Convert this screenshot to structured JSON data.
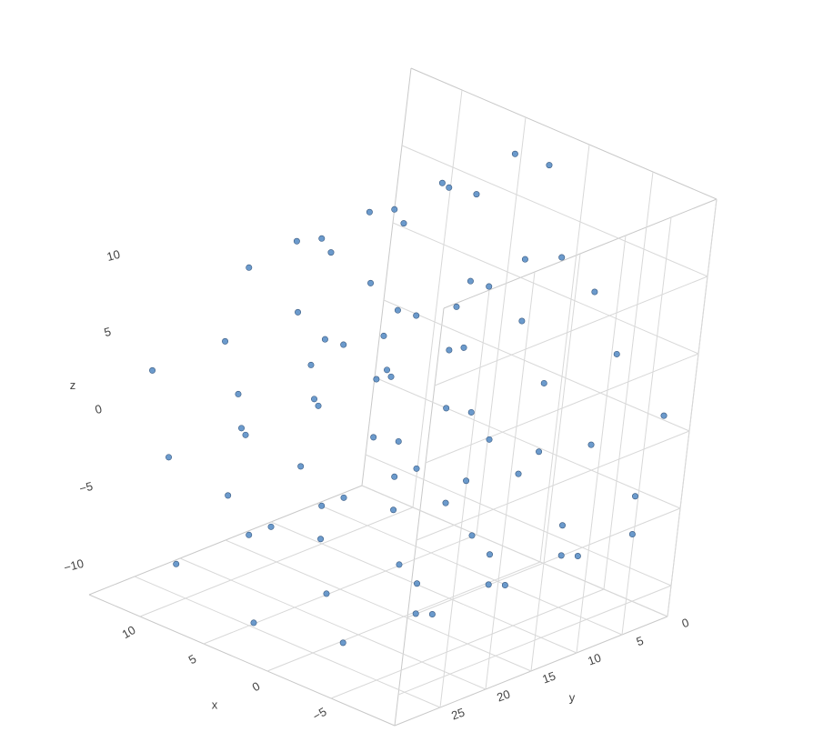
{
  "chart_data": {
    "type": "scatter3d",
    "xlabel": "x",
    "ylabel": "y",
    "zlabel": "z",
    "xlim": [
      -10,
      14
    ],
    "ylim": [
      0,
      30
    ],
    "zlim": [
      -12,
      15
    ],
    "xticks": [
      {
        "value": -5,
        "label": "−5"
      },
      0,
      5,
      10
    ],
    "yticks": [
      0,
      5,
      10,
      15,
      20,
      25
    ],
    "zticks": [
      {
        "value": -10,
        "label": "−10"
      },
      {
        "value": -5,
        "label": "−5"
      },
      0,
      5,
      10
    ],
    "grid": true,
    "color": "#5b8fc7",
    "x": [
      0.42,
      0.42,
      0.42,
      0.42,
      2.94,
      2.94,
      2.94,
      2.94,
      5.14,
      5.14,
      5.14,
      5.14,
      6.3,
      6.3,
      6.3,
      6.3,
      5.91,
      5.91,
      5.91,
      5.91,
      3.79,
      3.79,
      3.79,
      3.79,
      0.42,
      0.42,
      0.42,
      0.42,
      -3.64,
      -3.64,
      -3.64,
      -3.64,
      -7.14,
      -7.14,
      -7.14,
      -7.14,
      -9.26,
      -9.26,
      -9.26,
      -9.26,
      -9.12,
      -9.12,
      -9.12,
      -9.12,
      -6.65,
      -6.65,
      -6.65,
      -6.65,
      -2.17,
      -2.17,
      -2.17,
      -2.17,
      3.39,
      3.39,
      3.39,
      3.39,
      8.41,
      8.41,
      8.41,
      8.41,
      11.85,
      11.85,
      11.85,
      11.85,
      12.54,
      12.54,
      12.54,
      12.54,
      10.11,
      10.11,
      10.11,
      10.11,
      4.82,
      4.82,
      4.82,
      4.82,
      0.87,
      0.87,
      0.87,
      0.87
    ],
    "y": [
      1,
      9,
      17,
      25,
      3,
      11,
      19,
      27,
      5,
      13,
      21,
      29,
      2,
      10,
      18,
      26,
      4,
      12,
      20,
      28,
      6,
      14,
      22,
      0,
      1,
      9,
      17,
      25,
      3,
      11,
      19,
      27,
      5,
      13,
      21,
      29,
      2,
      10,
      18,
      26,
      4,
      12,
      20,
      28,
      6,
      14,
      22,
      0,
      1,
      9,
      17,
      25,
      3,
      11,
      19,
      27,
      5,
      13,
      21,
      29,
      2,
      10,
      18,
      26,
      4,
      12,
      20,
      28,
      6,
      14,
      22,
      0,
      1,
      9,
      17,
      25,
      3,
      11,
      19,
      27
    ],
    "z": [
      -4.78,
      -4.78,
      -4.78,
      -4.78,
      -4.41,
      -4.41,
      -4.41,
      -4.41,
      -2.69,
      -2.69,
      -2.69,
      -2.69,
      0.11,
      0.11,
      0.11,
      0.11,
      3.36,
      3.36,
      3.36,
      3.36,
      6.24,
      6.24,
      6.24,
      6.24,
      7.79,
      7.79,
      7.79,
      7.79,
      7.46,
      7.46,
      7.46,
      7.46,
      5.14,
      5.14,
      5.14,
      5.14,
      1.2,
      1.2,
      1.2,
      1.2,
      -3.59,
      -3.59,
      -3.59,
      -3.59,
      -7.86,
      -7.86,
      -7.86,
      -7.86,
      -10.58,
      -10.58,
      -10.58,
      -10.58,
      -10.78,
      -10.78,
      -10.78,
      -10.78,
      -8.28,
      -8.28,
      -8.28,
      -8.28,
      -3.29,
      -3.29,
      -3.29,
      -3.29,
      2.55,
      2.55,
      2.55,
      2.55,
      8.65,
      8.65,
      8.65,
      8.65,
      12.93,
      12.93,
      12.93,
      12.93,
      14.07,
      14.07,
      14.07,
      14.07
    ]
  }
}
